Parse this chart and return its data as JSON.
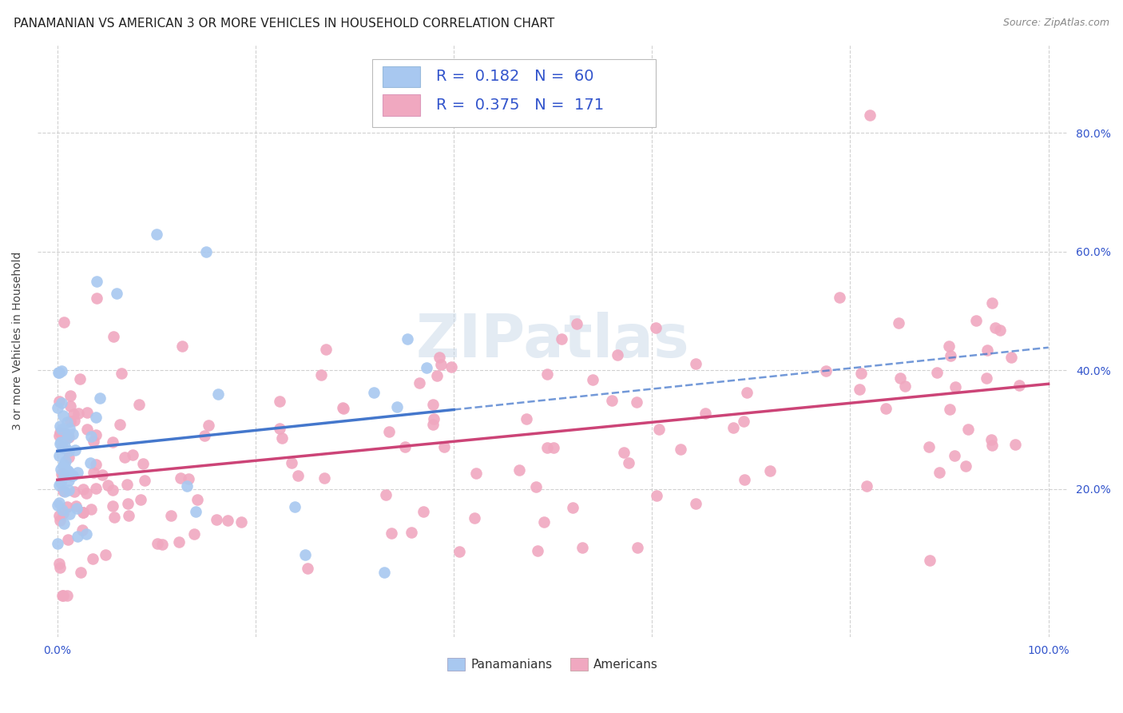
{
  "title": "PANAMANIAN VS AMERICAN 3 OR MORE VEHICLES IN HOUSEHOLD CORRELATION CHART",
  "source": "Source: ZipAtlas.com",
  "ylabel": "3 or more Vehicles in Household",
  "xlim": [
    -0.02,
    1.02
  ],
  "ylim": [
    -0.05,
    0.95
  ],
  "xtick_vals": [
    0.0,
    0.2,
    0.4,
    0.6,
    0.8,
    1.0
  ],
  "xticklabels": [
    "0.0%",
    "",
    "",
    "",
    "",
    "100.0%"
  ],
  "ytick_vals": [
    0.2,
    0.4,
    0.6,
    0.8
  ],
  "yticklabels_right": [
    "20.0%",
    "40.0%",
    "60.0%",
    "80.0%"
  ],
  "grid_color": "#cccccc",
  "background_color": "#ffffff",
  "panama_color": "#a8c8f0",
  "panama_line_color": "#4477cc",
  "american_color": "#f0a8c0",
  "american_line_color": "#cc4477",
  "panama_R": 0.182,
  "panama_N": 60,
  "american_R": 0.375,
  "american_N": 171,
  "watermark": "ZIPatlas",
  "title_fontsize": 11,
  "axis_label_fontsize": 10,
  "tick_label_fontsize": 10,
  "legend_text_color": "#3355cc",
  "legend_fontsize": 14
}
